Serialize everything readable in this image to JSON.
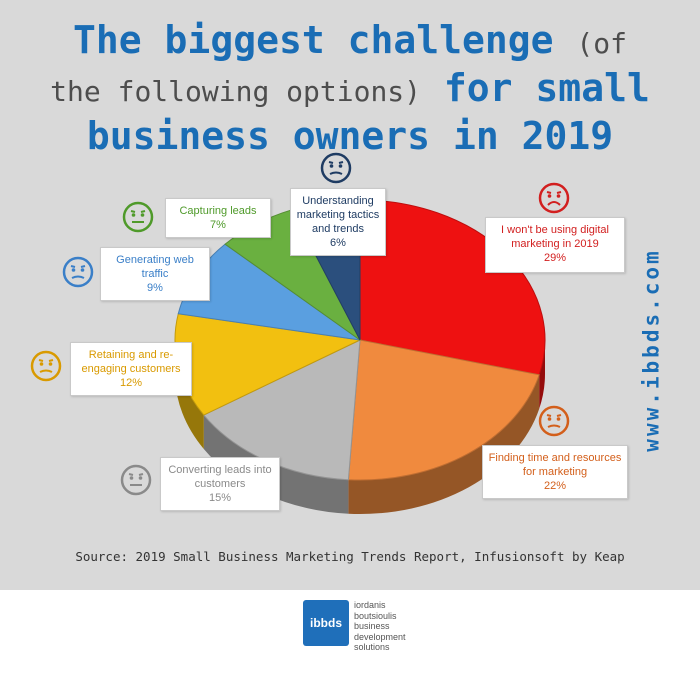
{
  "title": {
    "line1": "The biggest challenge",
    "line1_paren": "(of",
    "line2_paren": "the following options)",
    "line2_main": "for small",
    "line3": "business owners in 2019"
  },
  "side_url": "www.ibbds.com",
  "source": "Source: 2019 Small Business Marketing Trends Report, Infusionsoft by Keap",
  "footer": {
    "logo": "ibbds",
    "lines": [
      "iordanis",
      "boutsioulis",
      "business",
      "development",
      "solutions"
    ]
  },
  "colors": {
    "background": "#d9d9d9",
    "title_blue": "#1a6db5",
    "title_gray": "#4d4d4d"
  },
  "icons": [
    "sad-face-icon",
    "neutral-face-icon",
    "worried-face-icon"
  ],
  "chart_data": {
    "type": "pie",
    "title": "The biggest challenge (of the following options) for small business owners in 2019",
    "slices": [
      {
        "label": "I won't be using digital marketing in 2019",
        "value": 29,
        "display": "29%",
        "color": "#ee1111",
        "text_color": "#d21f1f",
        "icon": "sad-face-icon"
      },
      {
        "label": "Finding time and resources for marketing",
        "value": 22,
        "display": "22%",
        "color": "#f08a3e",
        "text_color": "#d35f1b",
        "icon": "worried-face-icon"
      },
      {
        "label": "Converting leads into customers",
        "value": 15,
        "display": "15%",
        "color": "#b9b9b9",
        "text_color": "#8a8a8a",
        "icon": "neutral-face-icon"
      },
      {
        "label": "Retaining and re-engaging customers",
        "value": 12,
        "display": "12%",
        "color": "#f2c010",
        "text_color": "#d99a00",
        "icon": "worried-face-icon"
      },
      {
        "label": "Generating web traffic",
        "value": 9,
        "display": "9%",
        "color": "#5a9fe0",
        "text_color": "#3a7fc8",
        "icon": "worried-face-icon"
      },
      {
        "label": "Capturing leads",
        "value": 7,
        "display": "7%",
        "color": "#6ab040",
        "text_color": "#4f9a2a",
        "icon": "neutral-face-icon"
      },
      {
        "label": "Understanding marketing tactics and trends",
        "value": 6,
        "display": "6%",
        "color": "#2b4f7d",
        "text_color": "#1f3c63",
        "icon": "worried-face-icon"
      }
    ]
  }
}
